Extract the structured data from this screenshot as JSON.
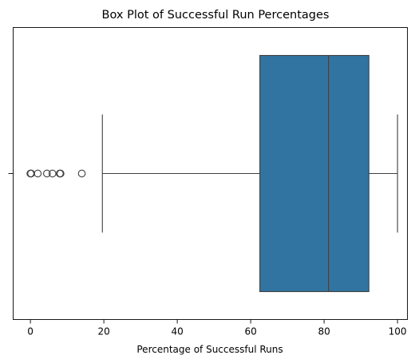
{
  "chart_data": {
    "type": "box",
    "title": "Box Plot of Successful Run Percentages",
    "xlabel": "Percentage of Successful Runs",
    "ylabel": "",
    "orientation": "horizontal",
    "xlim": [
      -4.7,
      102.7
    ],
    "xticks": [
      0,
      20,
      40,
      60,
      80,
      100
    ],
    "xtick_labels": [
      "0",
      "20",
      "40",
      "60",
      "80",
      "100"
    ],
    "grid": false,
    "series": [
      {
        "whisker_low": 19.6,
        "q1": 62.5,
        "median": 81.2,
        "q3": 92.2,
        "whisker_high": 100,
        "outliers": [
          0,
          0.2,
          2,
          4.5,
          6,
          8,
          8.2,
          14
        ]
      }
    ],
    "colors": {
      "box_fill": "#3274a1",
      "line": "#3f3f3f",
      "axis": "#000000"
    }
  }
}
